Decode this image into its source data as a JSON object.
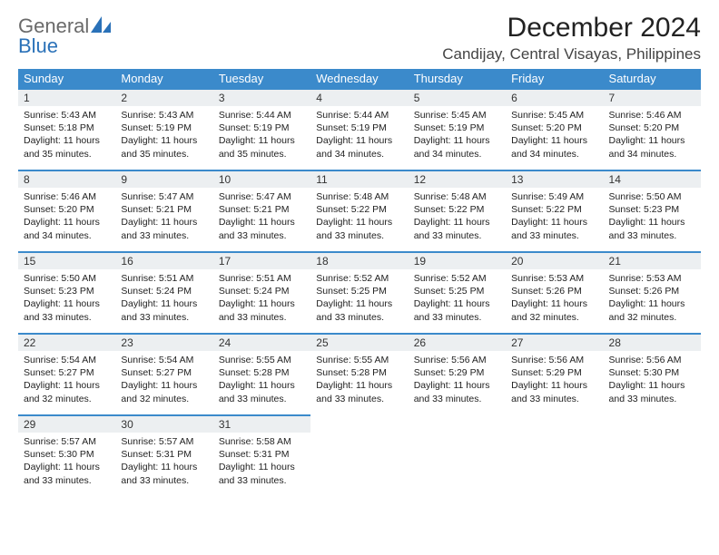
{
  "logo": {
    "word1": "General",
    "word2": "Blue"
  },
  "title": "December 2024",
  "location": "Candijay, Central Visayas, Philippines",
  "colors": {
    "header_bg": "#3b8acb",
    "header_text": "#ffffff",
    "daynum_bg": "#eceff1",
    "row_border": "#3b8acb",
    "logo_gray": "#6a6a6a",
    "logo_blue": "#2a71b8"
  },
  "weekdays": [
    "Sunday",
    "Monday",
    "Tuesday",
    "Wednesday",
    "Thursday",
    "Friday",
    "Saturday"
  ],
  "weeks": [
    [
      {
        "n": "1",
        "sr": "5:43 AM",
        "ss": "5:18 PM",
        "dl": "11 hours and 35 minutes."
      },
      {
        "n": "2",
        "sr": "5:43 AM",
        "ss": "5:19 PM",
        "dl": "11 hours and 35 minutes."
      },
      {
        "n": "3",
        "sr": "5:44 AM",
        "ss": "5:19 PM",
        "dl": "11 hours and 35 minutes."
      },
      {
        "n": "4",
        "sr": "5:44 AM",
        "ss": "5:19 PM",
        "dl": "11 hours and 34 minutes."
      },
      {
        "n": "5",
        "sr": "5:45 AM",
        "ss": "5:19 PM",
        "dl": "11 hours and 34 minutes."
      },
      {
        "n": "6",
        "sr": "5:45 AM",
        "ss": "5:20 PM",
        "dl": "11 hours and 34 minutes."
      },
      {
        "n": "7",
        "sr": "5:46 AM",
        "ss": "5:20 PM",
        "dl": "11 hours and 34 minutes."
      }
    ],
    [
      {
        "n": "8",
        "sr": "5:46 AM",
        "ss": "5:20 PM",
        "dl": "11 hours and 34 minutes."
      },
      {
        "n": "9",
        "sr": "5:47 AM",
        "ss": "5:21 PM",
        "dl": "11 hours and 33 minutes."
      },
      {
        "n": "10",
        "sr": "5:47 AM",
        "ss": "5:21 PM",
        "dl": "11 hours and 33 minutes."
      },
      {
        "n": "11",
        "sr": "5:48 AM",
        "ss": "5:22 PM",
        "dl": "11 hours and 33 minutes."
      },
      {
        "n": "12",
        "sr": "5:48 AM",
        "ss": "5:22 PM",
        "dl": "11 hours and 33 minutes."
      },
      {
        "n": "13",
        "sr": "5:49 AM",
        "ss": "5:22 PM",
        "dl": "11 hours and 33 minutes."
      },
      {
        "n": "14",
        "sr": "5:50 AM",
        "ss": "5:23 PM",
        "dl": "11 hours and 33 minutes."
      }
    ],
    [
      {
        "n": "15",
        "sr": "5:50 AM",
        "ss": "5:23 PM",
        "dl": "11 hours and 33 minutes."
      },
      {
        "n": "16",
        "sr": "5:51 AM",
        "ss": "5:24 PM",
        "dl": "11 hours and 33 minutes."
      },
      {
        "n": "17",
        "sr": "5:51 AM",
        "ss": "5:24 PM",
        "dl": "11 hours and 33 minutes."
      },
      {
        "n": "18",
        "sr": "5:52 AM",
        "ss": "5:25 PM",
        "dl": "11 hours and 33 minutes."
      },
      {
        "n": "19",
        "sr": "5:52 AM",
        "ss": "5:25 PM",
        "dl": "11 hours and 33 minutes."
      },
      {
        "n": "20",
        "sr": "5:53 AM",
        "ss": "5:26 PM",
        "dl": "11 hours and 32 minutes."
      },
      {
        "n": "21",
        "sr": "5:53 AM",
        "ss": "5:26 PM",
        "dl": "11 hours and 32 minutes."
      }
    ],
    [
      {
        "n": "22",
        "sr": "5:54 AM",
        "ss": "5:27 PM",
        "dl": "11 hours and 32 minutes."
      },
      {
        "n": "23",
        "sr": "5:54 AM",
        "ss": "5:27 PM",
        "dl": "11 hours and 32 minutes."
      },
      {
        "n": "24",
        "sr": "5:55 AM",
        "ss": "5:28 PM",
        "dl": "11 hours and 33 minutes."
      },
      {
        "n": "25",
        "sr": "5:55 AM",
        "ss": "5:28 PM",
        "dl": "11 hours and 33 minutes."
      },
      {
        "n": "26",
        "sr": "5:56 AM",
        "ss": "5:29 PM",
        "dl": "11 hours and 33 minutes."
      },
      {
        "n": "27",
        "sr": "5:56 AM",
        "ss": "5:29 PM",
        "dl": "11 hours and 33 minutes."
      },
      {
        "n": "28",
        "sr": "5:56 AM",
        "ss": "5:30 PM",
        "dl": "11 hours and 33 minutes."
      }
    ],
    [
      {
        "n": "29",
        "sr": "5:57 AM",
        "ss": "5:30 PM",
        "dl": "11 hours and 33 minutes."
      },
      {
        "n": "30",
        "sr": "5:57 AM",
        "ss": "5:31 PM",
        "dl": "11 hours and 33 minutes."
      },
      {
        "n": "31",
        "sr": "5:58 AM",
        "ss": "5:31 PM",
        "dl": "11 hours and 33 minutes."
      },
      null,
      null,
      null,
      null
    ]
  ],
  "labels": {
    "sunrise": "Sunrise:",
    "sunset": "Sunset:",
    "daylight": "Daylight:"
  }
}
